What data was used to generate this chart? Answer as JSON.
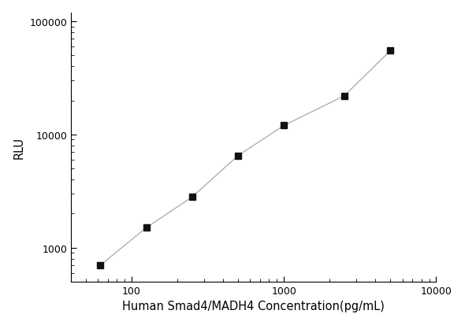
{
  "x_data": [
    62.5,
    125,
    250,
    500,
    1000,
    2500,
    5000
  ],
  "y_data": [
    700,
    1500,
    2800,
    6500,
    12000,
    22000,
    55000
  ],
  "xlabel": "Human Smad4/MADH4 Concentration(pg/mL)",
  "ylabel": "RLU",
  "xlim": [
    40,
    10000
  ],
  "ylim": [
    500,
    120000
  ],
  "x_ticks": [
    100,
    1000,
    10000
  ],
  "y_ticks": [
    1000,
    10000,
    100000
  ],
  "line_color": "#b0b0b0",
  "marker_color": "#111111",
  "background_color": "#ffffff",
  "marker_size": 6,
  "line_width": 1.0,
  "xlabel_fontsize": 10.5,
  "ylabel_fontsize": 10.5,
  "tick_fontsize": 9
}
